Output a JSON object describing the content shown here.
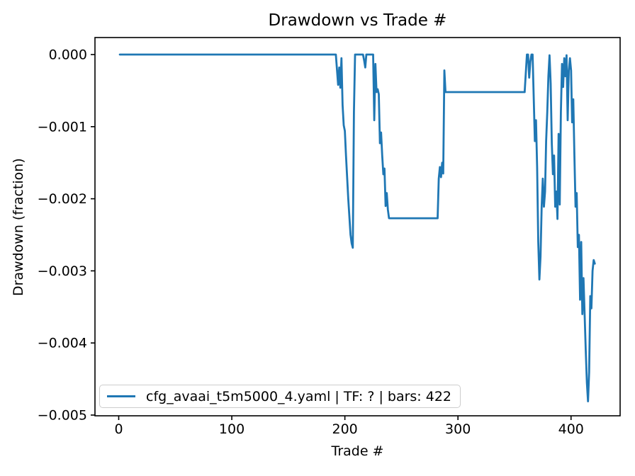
{
  "figure": {
    "title": "Drawdown vs Trade #",
    "xlabel": "Trade #",
    "ylabel": "Drawdown (fraction)",
    "background_color": "#ffffff"
  },
  "legend": {
    "label": "cfg_avaai_t5m5000_4.yaml | TF: ? | bars: 422",
    "position": "lower left"
  },
  "chart_data": {
    "type": "line",
    "title": "Drawdown vs Trade #",
    "xlabel": "Trade #",
    "ylabel": "Drawdown (fraction)",
    "grid": false,
    "legend_position": "lower left",
    "line_color": "#1f77b4",
    "axis_color": "#000000",
    "xlim": [
      -21,
      443.4
    ],
    "ylim": [
      -0.00501,
      0.000236
    ],
    "x_ticks": {
      "values": [
        0,
        100,
        200,
        300,
        400
      ],
      "labels": [
        "0",
        "100",
        "200",
        "300",
        "400"
      ]
    },
    "y_ticks": {
      "values": [
        0,
        -0.001,
        -0.002,
        -0.003,
        -0.004,
        -0.005
      ],
      "labels": [
        "0.000",
        "−0.001",
        "−0.002",
        "−0.003",
        "−0.004",
        "−0.005"
      ]
    },
    "series": [
      {
        "name": "cfg_avaai_t5m5000_4.yaml | TF: ? | bars: 422",
        "points": [
          [
            1,
            0
          ],
          [
            192,
            0
          ],
          [
            194,
            -0.00042
          ],
          [
            195,
            -0.00018
          ],
          [
            196,
            -0.00046
          ],
          [
            197,
            -5e-05
          ],
          [
            198,
            -0.0007
          ],
          [
            199,
            -0.00098
          ],
          [
            200,
            -0.00106
          ],
          [
            201,
            -0.0014
          ],
          [
            203,
            -0.002
          ],
          [
            205,
            -0.0025
          ],
          [
            206,
            -0.00262
          ],
          [
            207,
            -0.00268
          ],
          [
            208,
            -0.0008
          ],
          [
            209,
            0
          ],
          [
            216,
            0
          ],
          [
            217,
            -8e-05
          ],
          [
            218,
            -0.00018
          ],
          [
            219,
            0
          ],
          [
            225,
            0
          ],
          [
            226,
            -0.00091
          ],
          [
            227,
            -0.00013
          ],
          [
            228,
            -0.00052
          ],
          [
            229,
            -0.00048
          ],
          [
            230,
            -0.00055
          ],
          [
            231,
            -0.00123
          ],
          [
            232,
            -0.00108
          ],
          [
            233,
            -0.0014
          ],
          [
            234,
            -0.00166
          ],
          [
            235,
            -0.00158
          ],
          [
            236,
            -0.0021
          ],
          [
            237,
            -0.00192
          ],
          [
            238,
            -0.00215
          ],
          [
            239,
            -0.00227
          ],
          [
            282,
            -0.00227
          ],
          [
            283,
            -0.00172
          ],
          [
            284,
            -0.00156
          ],
          [
            285,
            -0.0017
          ],
          [
            286,
            -0.0015
          ],
          [
            287,
            -0.00165
          ],
          [
            288,
            -0.00022
          ],
          [
            289,
            -0.00052
          ],
          [
            359,
            -0.00052
          ],
          [
            361,
            0
          ],
          [
            362,
            0
          ],
          [
            363,
            -0.00032
          ],
          [
            364,
            -0.0001
          ],
          [
            365,
            0
          ],
          [
            366,
            0
          ],
          [
            367,
            -0.0006
          ],
          [
            368,
            -0.0012
          ],
          [
            369,
            -0.00091
          ],
          [
            370,
            -0.00156
          ],
          [
            371,
            -0.0026
          ],
          [
            372,
            -0.00312
          ],
          [
            373,
            -0.0028
          ],
          [
            374,
            -0.00211
          ],
          [
            375,
            -0.00172
          ],
          [
            376,
            -0.00211
          ],
          [
            377,
            -0.0019
          ],
          [
            378,
            -0.0012
          ],
          [
            379,
            -0.0008
          ],
          [
            380,
            -0.0003
          ],
          [
            381,
            -1e-05
          ],
          [
            382,
            -0.0004
          ],
          [
            383,
            -0.00123
          ],
          [
            384,
            -0.00166
          ],
          [
            385,
            -0.0014
          ],
          [
            386,
            -0.00211
          ],
          [
            387,
            -0.0019
          ],
          [
            388,
            -0.00228
          ],
          [
            389,
            -0.0011
          ],
          [
            390,
            -0.00208
          ],
          [
            391,
            -0.00081
          ],
          [
            392,
            -0.00013
          ],
          [
            393,
            -0.00045
          ],
          [
            394,
            -5e-05
          ],
          [
            395,
            -0.0003
          ],
          [
            396,
            -1e-05
          ],
          [
            397,
            -0.00091
          ],
          [
            398,
            -0.00022
          ],
          [
            399,
            -5e-05
          ],
          [
            400,
            -0.00022
          ],
          [
            401,
            -0.00094
          ],
          [
            402,
            -0.00062
          ],
          [
            403,
            -0.0014
          ],
          [
            404,
            -0.00211
          ],
          [
            405,
            -0.00192
          ],
          [
            406,
            -0.00267
          ],
          [
            407,
            -0.0025
          ],
          [
            408,
            -0.0034
          ],
          [
            409,
            -0.0026
          ],
          [
            410,
            -0.0036
          ],
          [
            411,
            -0.0031
          ],
          [
            412,
            -0.0036
          ],
          [
            413,
            -0.0041
          ],
          [
            414,
            -0.00455
          ],
          [
            415,
            -0.00481
          ],
          [
            416,
            -0.0044
          ],
          [
            417,
            -0.00335
          ],
          [
            418,
            -0.00352
          ],
          [
            419,
            -0.003
          ],
          [
            420,
            -0.00285
          ],
          [
            421,
            -0.0029
          ]
        ]
      }
    ]
  }
}
